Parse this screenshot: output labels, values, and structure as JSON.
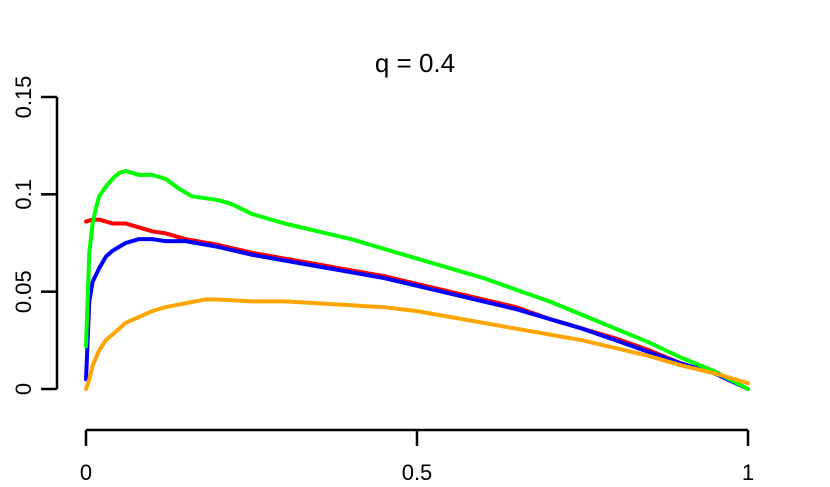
{
  "chart_data": {
    "type": "line",
    "title": "q = 0.4",
    "xlabel": "",
    "ylabel": "",
    "xlim": [
      0,
      1
    ],
    "ylim": [
      0,
      0.15
    ],
    "x_ticks": [
      {
        "value": 0,
        "label": "0"
      },
      {
        "value": 0.5,
        "label": "0.5"
      },
      {
        "value": 1,
        "label": "1"
      }
    ],
    "y_ticks": [
      {
        "value": 0,
        "label": "0"
      },
      {
        "value": 0.05,
        "label": "0.05"
      },
      {
        "value": 0.1,
        "label": "0.1"
      },
      {
        "value": 0.15,
        "label": "0.15"
      }
    ],
    "grid": false,
    "legend": "none",
    "series": [
      {
        "color": "#ff0000",
        "points": [
          [
            0.0,
            0.086
          ],
          [
            0.01,
            0.087
          ],
          [
            0.02,
            0.087
          ],
          [
            0.04,
            0.085
          ],
          [
            0.06,
            0.085
          ],
          [
            0.08,
            0.083
          ],
          [
            0.1,
            0.081
          ],
          [
            0.12,
            0.08
          ],
          [
            0.15,
            0.077
          ],
          [
            0.2,
            0.074
          ],
          [
            0.25,
            0.07
          ],
          [
            0.3,
            0.067
          ],
          [
            0.35,
            0.064
          ],
          [
            0.4,
            0.061
          ],
          [
            0.45,
            0.058
          ],
          [
            0.5,
            0.054
          ],
          [
            0.55,
            0.05
          ],
          [
            0.6,
            0.046
          ],
          [
            0.65,
            0.042
          ],
          [
            0.7,
            0.036
          ],
          [
            0.75,
            0.031
          ],
          [
            0.8,
            0.026
          ],
          [
            0.85,
            0.02
          ],
          [
            0.9,
            0.013
          ],
          [
            0.95,
            0.008
          ],
          [
            1.0,
            0.0
          ]
        ]
      },
      {
        "color": "#0000ff",
        "points": [
          [
            0.0,
            0.005
          ],
          [
            0.005,
            0.045
          ],
          [
            0.01,
            0.055
          ],
          [
            0.02,
            0.062
          ],
          [
            0.03,
            0.068
          ],
          [
            0.04,
            0.071
          ],
          [
            0.05,
            0.073
          ],
          [
            0.06,
            0.075
          ],
          [
            0.08,
            0.077
          ],
          [
            0.1,
            0.077
          ],
          [
            0.12,
            0.076
          ],
          [
            0.15,
            0.076
          ],
          [
            0.2,
            0.073
          ],
          [
            0.25,
            0.069
          ],
          [
            0.3,
            0.066
          ],
          [
            0.35,
            0.063
          ],
          [
            0.4,
            0.06
          ],
          [
            0.45,
            0.057
          ],
          [
            0.5,
            0.053
          ],
          [
            0.55,
            0.049
          ],
          [
            0.6,
            0.045
          ],
          [
            0.65,
            0.041
          ],
          [
            0.7,
            0.036
          ],
          [
            0.75,
            0.031
          ],
          [
            0.8,
            0.025
          ],
          [
            0.85,
            0.019
          ],
          [
            0.9,
            0.013
          ],
          [
            0.95,
            0.008
          ],
          [
            1.0,
            0.0
          ]
        ]
      },
      {
        "color": "#00ff00",
        "points": [
          [
            0.0,
            0.022
          ],
          [
            0.005,
            0.07
          ],
          [
            0.01,
            0.085
          ],
          [
            0.015,
            0.093
          ],
          [
            0.02,
            0.099
          ],
          [
            0.03,
            0.104
          ],
          [
            0.04,
            0.108
          ],
          [
            0.05,
            0.111
          ],
          [
            0.06,
            0.112
          ],
          [
            0.07,
            0.111
          ],
          [
            0.08,
            0.11
          ],
          [
            0.1,
            0.11
          ],
          [
            0.12,
            0.108
          ],
          [
            0.14,
            0.103
          ],
          [
            0.16,
            0.099
          ],
          [
            0.18,
            0.098
          ],
          [
            0.2,
            0.097
          ],
          [
            0.22,
            0.095
          ],
          [
            0.25,
            0.09
          ],
          [
            0.3,
            0.085
          ],
          [
            0.35,
            0.081
          ],
          [
            0.4,
            0.077
          ],
          [
            0.45,
            0.072
          ],
          [
            0.5,
            0.067
          ],
          [
            0.55,
            0.062
          ],
          [
            0.6,
            0.057
          ],
          [
            0.65,
            0.051
          ],
          [
            0.7,
            0.045
          ],
          [
            0.75,
            0.038
          ],
          [
            0.8,
            0.031
          ],
          [
            0.85,
            0.024
          ],
          [
            0.9,
            0.016
          ],
          [
            0.95,
            0.009
          ],
          [
            1.0,
            0.0
          ]
        ]
      },
      {
        "color": "#ffa500",
        "points": [
          [
            0.0,
            0.0
          ],
          [
            0.005,
            0.005
          ],
          [
            0.01,
            0.012
          ],
          [
            0.02,
            0.02
          ],
          [
            0.03,
            0.025
          ],
          [
            0.04,
            0.028
          ],
          [
            0.05,
            0.031
          ],
          [
            0.06,
            0.034
          ],
          [
            0.08,
            0.037
          ],
          [
            0.1,
            0.04
          ],
          [
            0.12,
            0.042
          ],
          [
            0.15,
            0.044
          ],
          [
            0.18,
            0.046
          ],
          [
            0.2,
            0.046
          ],
          [
            0.25,
            0.045
          ],
          [
            0.3,
            0.045
          ],
          [
            0.35,
            0.044
          ],
          [
            0.4,
            0.043
          ],
          [
            0.45,
            0.042
          ],
          [
            0.5,
            0.04
          ],
          [
            0.55,
            0.037
          ],
          [
            0.6,
            0.034
          ],
          [
            0.65,
            0.031
          ],
          [
            0.7,
            0.028
          ],
          [
            0.75,
            0.025
          ],
          [
            0.8,
            0.021
          ],
          [
            0.85,
            0.017
          ],
          [
            0.9,
            0.012
          ],
          [
            0.95,
            0.008
          ],
          [
            1.0,
            0.003
          ]
        ]
      }
    ]
  }
}
